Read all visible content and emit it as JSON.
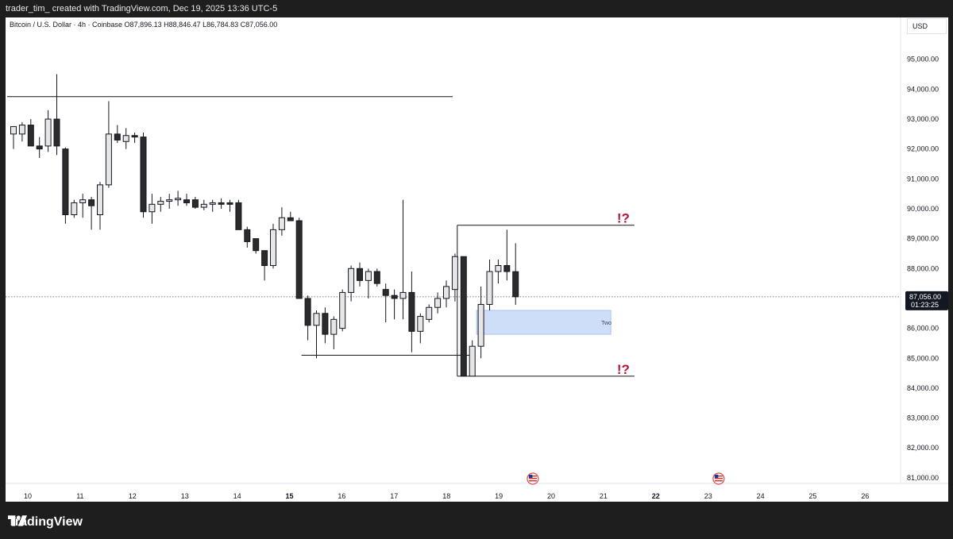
{
  "header": {
    "credit": "trader_tim_ created with TradingView.com, Dec 19, 2025 13:36 UTC-5"
  },
  "chart": {
    "legend": "Bitcoin / U.S. Dollar · 4h · Coinbase  O87,896.13  H88,846.47  L86,784.83  C87,056.00",
    "currency": "USD",
    "price_label": "87,056.00",
    "countdown": "01:23:25",
    "zone_label": "Two",
    "alert_top": "!?",
    "alert_bottom": "!?"
  },
  "footer": {
    "brand": "TradingView"
  },
  "chart_data": {
    "type": "candlestick",
    "symbol": "Bitcoin / U.S. Dollar",
    "interval": "4h",
    "exchange": "Coinbase",
    "ohlc_last": {
      "open": 87896.13,
      "high": 88846.47,
      "low": 86784.83,
      "close": 87056.0
    },
    "last_price": 87056.0,
    "ylim": [
      80200,
      96400
    ],
    "y_ticks": [
      "81,000.00",
      "82,000.00",
      "83,000.00",
      "84,000.00",
      "85,000.00",
      "86,000.00",
      "87,000.00",
      "88,000.00",
      "89,000.00",
      "90,000.00",
      "91,000.00",
      "92,000.00",
      "93,000.00",
      "94,000.00",
      "95,000.00"
    ],
    "x_ticks": [
      "10",
      "11",
      "12",
      "13",
      "14",
      "15",
      "16",
      "17",
      "18",
      "19",
      "20",
      "21",
      "22",
      "23",
      "24",
      "25",
      "26"
    ],
    "x_ticks_bold": [
      "15",
      "22"
    ],
    "candles": [
      {
        "o": 92500,
        "h": 92750,
        "l": 92000,
        "c": 92750
      },
      {
        "o": 92500,
        "h": 92900,
        "l": 92250,
        "c": 92800
      },
      {
        "o": 92800,
        "h": 93000,
        "l": 92100,
        "c": 92100
      },
      {
        "o": 92100,
        "h": 92400,
        "l": 91700,
        "c": 92000
      },
      {
        "o": 92100,
        "h": 93300,
        "l": 91900,
        "c": 93000
      },
      {
        "o": 93000,
        "h": 94500,
        "l": 91800,
        "c": 92100
      },
      {
        "o": 92000,
        "h": 92050,
        "l": 89500,
        "c": 89800
      },
      {
        "o": 89800,
        "h": 90300,
        "l": 89700,
        "c": 90200
      },
      {
        "o": 90200,
        "h": 90500,
        "l": 89700,
        "c": 90300
      },
      {
        "o": 90300,
        "h": 90400,
        "l": 89300,
        "c": 90100
      },
      {
        "o": 89800,
        "h": 90900,
        "l": 89300,
        "c": 90800
      },
      {
        "o": 90800,
        "h": 93600,
        "l": 90700,
        "c": 92500
      },
      {
        "o": 92500,
        "h": 92800,
        "l": 92200,
        "c": 92300
      },
      {
        "o": 92250,
        "h": 92700,
        "l": 92000,
        "c": 92450
      },
      {
        "o": 92450,
        "h": 92550,
        "l": 92200,
        "c": 92400
      },
      {
        "o": 92400,
        "h": 92550,
        "l": 89700,
        "c": 89900
      },
      {
        "o": 89900,
        "h": 90500,
        "l": 89500,
        "c": 90150
      },
      {
        "o": 90150,
        "h": 90400,
        "l": 89900,
        "c": 90250
      },
      {
        "o": 90250,
        "h": 90500,
        "l": 90000,
        "c": 90300
      },
      {
        "o": 90300,
        "h": 90600,
        "l": 90100,
        "c": 90350
      },
      {
        "o": 90300,
        "h": 90500,
        "l": 90100,
        "c": 90200
      },
      {
        "o": 90300,
        "h": 90400,
        "l": 90000,
        "c": 90050
      },
      {
        "o": 90050,
        "h": 90300,
        "l": 89950,
        "c": 90150
      },
      {
        "o": 90150,
        "h": 90300,
        "l": 89900,
        "c": 90200
      },
      {
        "o": 90200,
        "h": 90350,
        "l": 90000,
        "c": 90150
      },
      {
        "o": 90200,
        "h": 90300,
        "l": 89900,
        "c": 90150
      },
      {
        "o": 90200,
        "h": 90300,
        "l": 89300,
        "c": 89300
      },
      {
        "o": 89300,
        "h": 89400,
        "l": 88700,
        "c": 88900
      },
      {
        "o": 89000,
        "h": 89000,
        "l": 88500,
        "c": 88600
      },
      {
        "o": 88600,
        "h": 88600,
        "l": 87600,
        "c": 88100
      },
      {
        "o": 88100,
        "h": 89500,
        "l": 88000,
        "c": 89300
      },
      {
        "o": 89300,
        "h": 90050,
        "l": 89100,
        "c": 89700
      },
      {
        "o": 89700,
        "h": 89900,
        "l": 89600,
        "c": 89600
      },
      {
        "o": 89600,
        "h": 89700,
        "l": 87000,
        "c": 87000
      },
      {
        "o": 87000,
        "h": 87100,
        "l": 85600,
        "c": 86100
      },
      {
        "o": 86100,
        "h": 86600,
        "l": 85000,
        "c": 86500
      },
      {
        "o": 86500,
        "h": 86700,
        "l": 85500,
        "c": 85800
      },
      {
        "o": 85800,
        "h": 86400,
        "l": 85300,
        "c": 86300
      },
      {
        "o": 86000,
        "h": 87300,
        "l": 85900,
        "c": 87200
      },
      {
        "o": 87200,
        "h": 88100,
        "l": 86900,
        "c": 88000
      },
      {
        "o": 88000,
        "h": 88200,
        "l": 87400,
        "c": 87600
      },
      {
        "o": 87600,
        "h": 88000,
        "l": 87000,
        "c": 87900
      },
      {
        "o": 87900,
        "h": 88000,
        "l": 87400,
        "c": 87500
      },
      {
        "o": 87300,
        "h": 87500,
        "l": 86200,
        "c": 87100
      },
      {
        "o": 87100,
        "h": 87300,
        "l": 86300,
        "c": 87000
      },
      {
        "o": 87000,
        "h": 90300,
        "l": 86300,
        "c": 87200
      },
      {
        "o": 87200,
        "h": 87900,
        "l": 85200,
        "c": 85900
      },
      {
        "o": 85900,
        "h": 86500,
        "l": 85500,
        "c": 86400
      },
      {
        "o": 86300,
        "h": 86800,
        "l": 86200,
        "c": 86700
      },
      {
        "o": 86700,
        "h": 87200,
        "l": 86500,
        "c": 87000
      },
      {
        "o": 87000,
        "h": 87600,
        "l": 86700,
        "c": 87400
      },
      {
        "o": 87300,
        "h": 88500,
        "l": 86900,
        "c": 88400
      },
      {
        "o": 88400,
        "h": 88400,
        "l": 84400,
        "c": 84400
      },
      {
        "o": 84400,
        "h": 85600,
        "l": 84400,
        "c": 85400
      },
      {
        "o": 85400,
        "h": 87400,
        "l": 85000,
        "c": 86800
      },
      {
        "o": 86800,
        "h": 88300,
        "l": 86600,
        "c": 87900
      },
      {
        "o": 87900,
        "h": 88300,
        "l": 87500,
        "c": 88100
      },
      {
        "o": 88100,
        "h": 89300,
        "l": 87600,
        "c": 87900
      },
      {
        "o": 87896.13,
        "h": 88846.47,
        "l": 86784.83,
        "c": 87056.0
      }
    ],
    "horizontal_lines": [
      {
        "price": 93750,
        "from": 0,
        "to": 50
      },
      {
        "price": 89450,
        "from": 52,
        "to": 71
      },
      {
        "price": 85100,
        "from": 34,
        "to": 52
      },
      {
        "price": 84400,
        "from": 52,
        "to": 71
      }
    ],
    "zone": {
      "label": "Two",
      "from": 53.5,
      "to": 69,
      "top": 86600,
      "bottom": 85800
    },
    "grid": false,
    "event_markers": [
      "US flag",
      "US flag"
    ]
  }
}
